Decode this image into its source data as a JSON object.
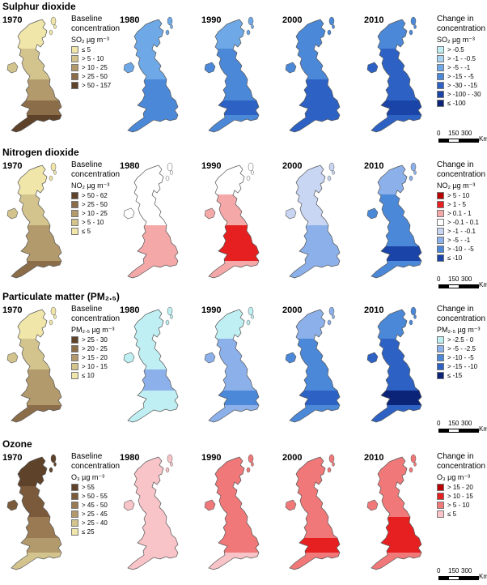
{
  "years": [
    "1970",
    "1980",
    "1990",
    "2000",
    "2010"
  ],
  "baseline_head": "Baseline\nconcentration",
  "change_head": "Change in\nconcentration",
  "scale": {
    "ticks": [
      "0",
      "150",
      "300"
    ],
    "unit": "Km"
  },
  "sections": [
    {
      "title": "Sulphur dioxide",
      "unit": "SO₂ µg m⁻³",
      "baseline_legend": [
        {
          "label": "≤ 5",
          "color": "#f0e6aa"
        },
        {
          "label": "> 5 - 10",
          "color": "#d3c48e"
        },
        {
          "label": "> 10 - 25",
          "color": "#b39a6c"
        },
        {
          "label": "> 25 - 50",
          "color": "#8c6d4a"
        },
        {
          "label": "> 50 - 157",
          "color": "#5e422a"
        }
      ],
      "change_legend": [
        {
          "label": "> -0.5",
          "color": "#bfeff2"
        },
        {
          "label": "> -1 - -0.5",
          "color": "#a8d4f2"
        },
        {
          "label": "> -5 - -1",
          "color": "#6ea8e6"
        },
        {
          "label": "> -15 - -5",
          "color": "#4b88d8"
        },
        {
          "label": "> -30 - -15",
          "color": "#2d62c4"
        },
        {
          "label": "> -100 - -30",
          "color": "#1b44a8"
        },
        {
          "label": "≤ -100",
          "color": "#0c2478"
        }
      ],
      "map_colors": {
        "1970": [
          "#f0e6aa",
          "#d3c48e",
          "#b39a6c",
          "#8c6d4a",
          "#5e422a"
        ],
        "1980": [
          "#6ea8e6",
          "#6ea8e6",
          "#4b88d8",
          "#4b88d8",
          "#4b88d8"
        ],
        "1990": [
          "#6ea8e6",
          "#4b88d8",
          "#4b88d8",
          "#2d62c4",
          "#4b88d8"
        ],
        "2000": [
          "#4b88d8",
          "#4b88d8",
          "#2d62c4",
          "#2d62c4",
          "#2d62c4"
        ],
        "2010": [
          "#4b88d8",
          "#2d62c4",
          "#2d62c4",
          "#1b44a8",
          "#2d62c4"
        ]
      }
    },
    {
      "title": "Nitrogen dioxide",
      "unit": "NO₂ µg m⁻³",
      "baseline_legend": [
        {
          "label": "> 50 - 62",
          "color": "#5e422a"
        },
        {
          "label": "> 25 - 50",
          "color": "#8c6d4a"
        },
        {
          "label": "> 10 - 25",
          "color": "#b39a6c"
        },
        {
          "label": "> 5 - 10",
          "color": "#d3c48e"
        },
        {
          "label": "≤ 5",
          "color": "#f0e6aa"
        }
      ],
      "change_legend": [
        {
          "label": "> 5 - 10",
          "color": "#b80000"
        },
        {
          "label": "> 1 - 5",
          "color": "#e62020"
        },
        {
          "label": "> 0.1 - 1",
          "color": "#f4a8a8"
        },
        {
          "label": "> -0.1 - 0.1",
          "color": "#ffffff"
        },
        {
          "label": "> -1 - -0.1",
          "color": "#c8d6f4"
        },
        {
          "label": "> -5 - -1",
          "color": "#8cb0ea"
        },
        {
          "label": "> -10 - -5",
          "color": "#4b88d8"
        },
        {
          "label": "≤ -10",
          "color": "#1b44a8"
        }
      ],
      "map_colors": {
        "1970": [
          "#f0e6aa",
          "#d3c48e",
          "#b39a6c",
          "#b39a6c",
          "#8c6d4a"
        ],
        "1980": [
          "#ffffff",
          "#ffffff",
          "#f4a8a8",
          "#f4a8a8",
          "#f4a8a8"
        ],
        "1990": [
          "#ffffff",
          "#f4a8a8",
          "#e62020",
          "#e62020",
          "#f4a8a8"
        ],
        "2000": [
          "#c8d6f4",
          "#c8d6f4",
          "#8cb0ea",
          "#8cb0ea",
          "#8cb0ea"
        ],
        "2010": [
          "#8cb0ea",
          "#4b88d8",
          "#4b88d8",
          "#1b44a8",
          "#4b88d8"
        ]
      }
    },
    {
      "title": "Particulate matter (PM₂.₅)",
      "unit": "PM₂.₅ µg m⁻³",
      "baseline_legend": [
        {
          "label": "> 25 - 30",
          "color": "#5e422a"
        },
        {
          "label": "> 20 - 25",
          "color": "#8c6d4a"
        },
        {
          "label": "> 15 - 20",
          "color": "#b39a6c"
        },
        {
          "label": "> 10 - 15",
          "color": "#d3c48e"
        },
        {
          "label": "≤ 10",
          "color": "#f0e6aa"
        }
      ],
      "change_legend": [
        {
          "label": "> -2.5 - 0",
          "color": "#bfeff2"
        },
        {
          "label": "> -5 - -2.5",
          "color": "#8cb0ea"
        },
        {
          "label": "> -10 - -5",
          "color": "#4b88d8"
        },
        {
          "label": "> -15 - -10",
          "color": "#2d62c4"
        },
        {
          "label": "≤ -15",
          "color": "#0c2478"
        }
      ],
      "map_colors": {
        "1970": [
          "#f0e6aa",
          "#d3c48e",
          "#b39a6c",
          "#b39a6c",
          "#8c6d4a"
        ],
        "1980": [
          "#bfeff2",
          "#bfeff2",
          "#8cb0ea",
          "#bfeff2",
          "#bfeff2"
        ],
        "1990": [
          "#bfeff2",
          "#8cb0ea",
          "#8cb0ea",
          "#4b88d8",
          "#8cb0ea"
        ],
        "2000": [
          "#8cb0ea",
          "#4b88d8",
          "#4b88d8",
          "#2d62c4",
          "#4b88d8"
        ],
        "2010": [
          "#4b88d8",
          "#2d62c4",
          "#2d62c4",
          "#0c2478",
          "#2d62c4"
        ]
      }
    },
    {
      "title": "Ozone",
      "unit": "O₃ µg m⁻³",
      "baseline_legend": [
        {
          "label": "> 55",
          "color": "#5e422a"
        },
        {
          "label": "> 50 - 55",
          "color": "#7a5a3a"
        },
        {
          "label": "> 45 - 50",
          "color": "#9a7a52"
        },
        {
          "label": "> 25 - 45",
          "color": "#b39a6c"
        },
        {
          "label": "> 25 - 40",
          "color": "#d3c48e"
        },
        {
          "label": "≤ 25",
          "color": "#f0e6aa"
        }
      ],
      "change_legend": [
        {
          "label": "> 15 - 20",
          "color": "#b80000"
        },
        {
          "label": "> 10 - 15",
          "color": "#e62020"
        },
        {
          "label": "> 5 - 10",
          "color": "#f07878"
        },
        {
          "label": "≤ 5",
          "color": "#f8c4c8"
        }
      ],
      "map_colors": {
        "1970": [
          "#5e422a",
          "#7a5a3a",
          "#9a7a52",
          "#b39a6c",
          "#d3c48e"
        ],
        "1980": [
          "#f8c4c8",
          "#f8c4c8",
          "#f8c4c8",
          "#f8c4c8",
          "#f8c4c8"
        ],
        "1990": [
          "#f07878",
          "#f07878",
          "#f07878",
          "#f07878",
          "#f8c4c8"
        ],
        "2000": [
          "#f07878",
          "#f07878",
          "#f07878",
          "#e62020",
          "#f07878"
        ],
        "2010": [
          "#f07878",
          "#f07878",
          "#e62020",
          "#e62020",
          "#f07878"
        ]
      }
    }
  ]
}
